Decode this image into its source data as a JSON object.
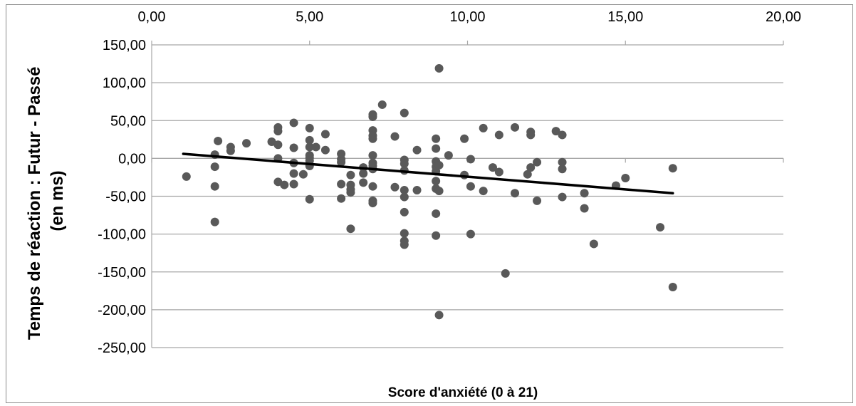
{
  "chart_data": {
    "type": "scatter",
    "title": "",
    "xlabel": "Score d'anxiété (0 à 21)",
    "ylabel_lines": [
      "Temps de réaction : Futur - Passé",
      "(en ms)"
    ],
    "xlim": [
      0,
      20
    ],
    "ylim": [
      -250,
      150
    ],
    "x_ticks": [
      0,
      5,
      10,
      15,
      20
    ],
    "x_tick_labels": [
      "0,00",
      "5,00",
      "10,00",
      "15,00",
      "20,00"
    ],
    "y_ticks": [
      150,
      100,
      50,
      0,
      -50,
      -100,
      -150,
      -200,
      -250
    ],
    "y_tick_labels": [
      "150,00",
      "100,00",
      "50,00",
      "0,00",
      "-50,00",
      "-100,00",
      "-150,00",
      "-200,00",
      "-250,00"
    ],
    "x_axis_position": "top",
    "grid": "horizontal",
    "legend": "none",
    "colors": {
      "points": "#595959",
      "trendline": "#000000",
      "grid": "#a6a6a6"
    },
    "trendline": {
      "x": [
        1,
        16.5
      ],
      "y": [
        6,
        -46
      ]
    },
    "points": [
      [
        1.1,
        -24
      ],
      [
        2,
        5
      ],
      [
        2,
        -11
      ],
      [
        2,
        -37
      ],
      [
        2,
        -84
      ],
      [
        2.1,
        23
      ],
      [
        2.5,
        15
      ],
      [
        2.5,
        10
      ],
      [
        3,
        20
      ],
      [
        3.8,
        22
      ],
      [
        4,
        41
      ],
      [
        4,
        36
      ],
      [
        4,
        18
      ],
      [
        4,
        0
      ],
      [
        4,
        -31
      ],
      [
        4.2,
        -35
      ],
      [
        4.5,
        47
      ],
      [
        4.5,
        14
      ],
      [
        4.5,
        -6
      ],
      [
        4.5,
        -20
      ],
      [
        4.5,
        -34
      ],
      [
        4.8,
        -21
      ],
      [
        5,
        40
      ],
      [
        5,
        24
      ],
      [
        5,
        15
      ],
      [
        5,
        4
      ],
      [
        5,
        1
      ],
      [
        5,
        -3
      ],
      [
        5,
        -10
      ],
      [
        5,
        -54
      ],
      [
        5.2,
        15
      ],
      [
        5.5,
        32
      ],
      [
        5.5,
        11
      ],
      [
        6,
        6
      ],
      [
        6,
        -1
      ],
      [
        6,
        -5
      ],
      [
        6,
        -34
      ],
      [
        6,
        -53
      ],
      [
        6.3,
        -22
      ],
      [
        6.3,
        -35
      ],
      [
        6.3,
        -41
      ],
      [
        6.3,
        -45
      ],
      [
        6.3,
        -93
      ],
      [
        6.7,
        -12
      ],
      [
        6.7,
        -20
      ],
      [
        6.7,
        -32
      ],
      [
        7,
        58
      ],
      [
        7,
        55
      ],
      [
        7,
        37
      ],
      [
        7,
        30
      ],
      [
        7,
        26
      ],
      [
        7,
        4
      ],
      [
        7,
        -6
      ],
      [
        7,
        -10
      ],
      [
        7,
        -14
      ],
      [
        7,
        -37
      ],
      [
        7,
        -56
      ],
      [
        7,
        -59
      ],
      [
        7.3,
        71
      ],
      [
        7.7,
        29
      ],
      [
        7.7,
        -38
      ],
      [
        8,
        60
      ],
      [
        8,
        -2
      ],
      [
        8,
        -7
      ],
      [
        8,
        -16
      ],
      [
        8,
        -42
      ],
      [
        8,
        -51
      ],
      [
        8,
        -71
      ],
      [
        8,
        -99
      ],
      [
        8,
        -109
      ],
      [
        8,
        -114
      ],
      [
        8.4,
        11
      ],
      [
        8.4,
        -42
      ],
      [
        9,
        26
      ],
      [
        9,
        13
      ],
      [
        9,
        -4
      ],
      [
        9,
        -11
      ],
      [
        9,
        -17
      ],
      [
        9,
        -30
      ],
      [
        9,
        -40
      ],
      [
        9,
        -73
      ],
      [
        9,
        -102
      ],
      [
        9.1,
        119
      ],
      [
        9.1,
        -9
      ],
      [
        9.1,
        -43
      ],
      [
        9.1,
        -207
      ],
      [
        9.4,
        4
      ],
      [
        9.9,
        26
      ],
      [
        9.9,
        -22
      ],
      [
        10.1,
        -1
      ],
      [
        10.1,
        -37
      ],
      [
        10.1,
        -100
      ],
      [
        10.5,
        40
      ],
      [
        10.5,
        -43
      ],
      [
        10.8,
        -12
      ],
      [
        11,
        31
      ],
      [
        11,
        -18
      ],
      [
        11.2,
        -152
      ],
      [
        11.5,
        41
      ],
      [
        11.5,
        -46
      ],
      [
        11.9,
        -21
      ],
      [
        12,
        35
      ],
      [
        12,
        31
      ],
      [
        12,
        -12
      ],
      [
        12.2,
        -5
      ],
      [
        12.2,
        -56
      ],
      [
        12.8,
        36
      ],
      [
        13,
        31
      ],
      [
        13,
        -5
      ],
      [
        13,
        -14
      ],
      [
        13,
        -51
      ],
      [
        13.7,
        -46
      ],
      [
        13.7,
        -66
      ],
      [
        14,
        -113
      ],
      [
        14.7,
        -36
      ],
      [
        15,
        -26
      ],
      [
        16.1,
        -91
      ],
      [
        16.5,
        -13
      ],
      [
        16.5,
        -170
      ]
    ]
  }
}
